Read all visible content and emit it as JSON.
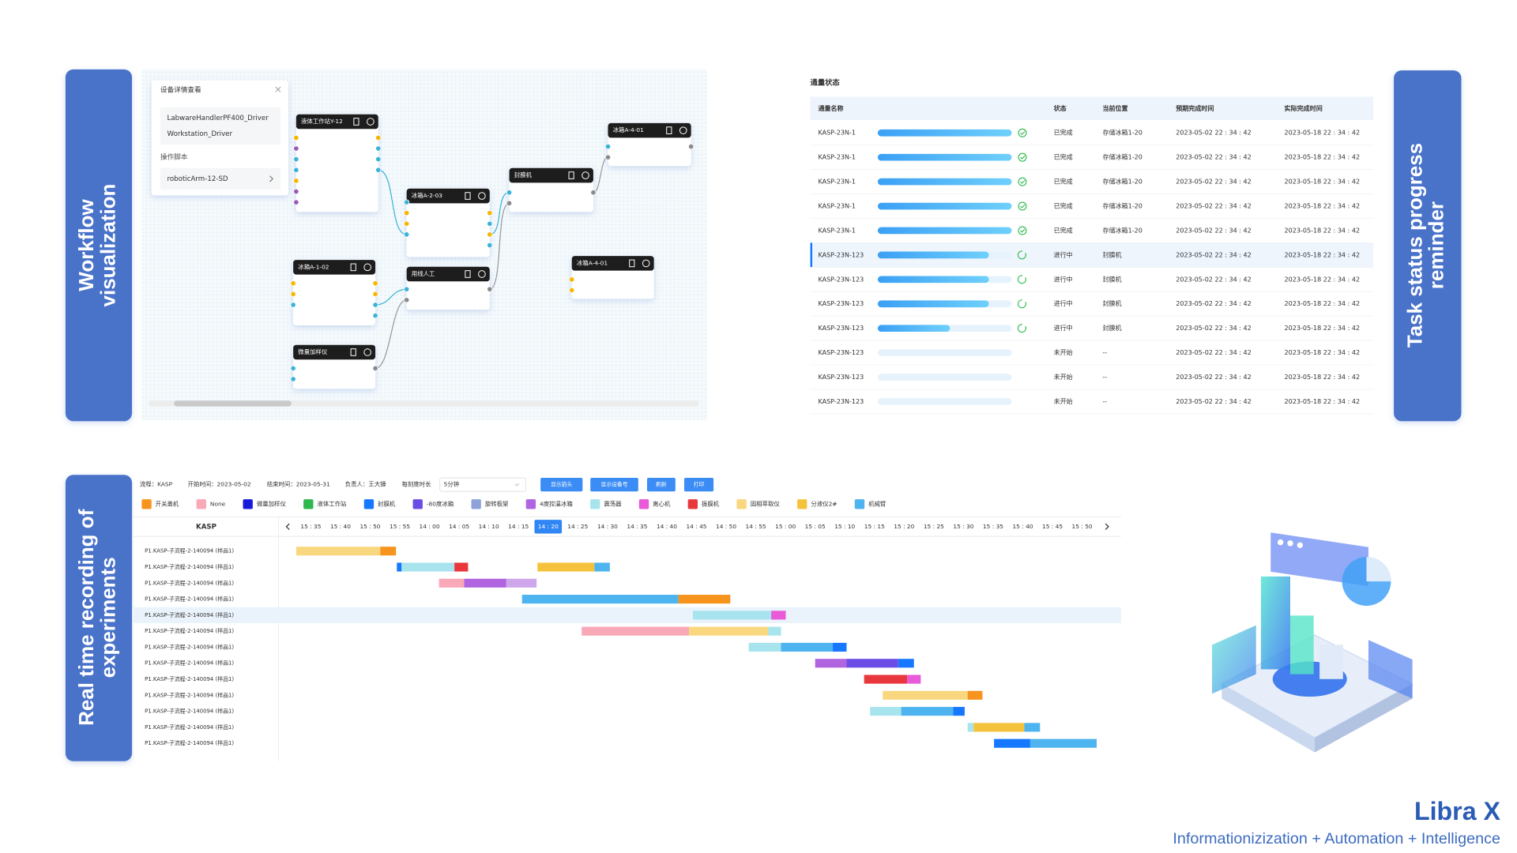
{
  "sections": {
    "workflow": [
      "Workflow",
      "visualization"
    ],
    "task": [
      "Task status progress",
      "reminder"
    ],
    "recording": [
      "Real time recording of",
      "experiments"
    ]
  },
  "workflow": {
    "detail": {
      "title": "设备详情查看",
      "items": [
        "LabwareHandlerPF400_Driver",
        "Workstation_Driver"
      ],
      "script_label": "操作脚本",
      "script": "roboticArm-12-SD"
    },
    "nodes": [
      "液体工作站Y-12",
      "冰箱A-2-03",
      "封膜机",
      "冰箱A-4-01",
      "冰箱A-1-02",
      "用线人工",
      "冰箱A-4-01",
      "微量加样仪"
    ]
  },
  "task_table": {
    "title": "通量状态",
    "headers": [
      "通量名称",
      "状态",
      "当前位置",
      "预期完成时间",
      "实际完成时间"
    ],
    "rows": [
      {
        "name": "KASP-23N-1",
        "progress": 100,
        "status": "已完成",
        "location": "存储冰箱1-20",
        "expected": "2023-05-02 22 : 34 : 42",
        "actual": "2023-05-18 22 : 34 : 42"
      },
      {
        "name": "KASP-23N-1",
        "progress": 100,
        "status": "已完成",
        "location": "存储冰箱1-20",
        "expected": "2023-05-02 22 : 34 : 42",
        "actual": "2023-05-18 22 : 34 : 42"
      },
      {
        "name": "KASP-23N-1",
        "progress": 100,
        "status": "已完成",
        "location": "存储冰箱1-20",
        "expected": "2023-05-02 22 : 34 : 42",
        "actual": "2023-05-18 22 : 34 : 42"
      },
      {
        "name": "KASP-23N-1",
        "progress": 100,
        "status": "已完成",
        "location": "存储冰箱1-20",
        "expected": "2023-05-02 22 : 34 : 42",
        "actual": "2023-05-18 22 : 34 : 42"
      },
      {
        "name": "KASP-23N-1",
        "progress": 100,
        "status": "已完成",
        "location": "存储冰箱1-20",
        "expected": "2023-05-02 22 : 34 : 42",
        "actual": "2023-05-18 22 : 34 : 42"
      },
      {
        "name": "KASP-23N-123",
        "progress": 83,
        "status": "进行中",
        "location": "封膜机",
        "expected": "2023-05-02 22 : 34 : 42",
        "actual": "2023-05-18 22 : 34 : 42"
      },
      {
        "name": "KASP-23N-123",
        "progress": 83,
        "status": "进行中",
        "location": "封膜机",
        "expected": "2023-05-02 22 : 34 : 42",
        "actual": "2023-05-18 22 : 34 : 42"
      },
      {
        "name": "KASP-23N-123",
        "progress": 83,
        "status": "进行中",
        "location": "封膜机",
        "expected": "2023-05-02 22 : 34 : 42",
        "actual": "2023-05-18 22 : 34 : 42"
      },
      {
        "name": "KASP-23N-123",
        "progress": 54,
        "status": "进行中",
        "location": "封膜机",
        "expected": "2023-05-02 22 : 34 : 42",
        "actual": "2023-05-18 22 : 34 : 42"
      },
      {
        "name": "KASP-23N-123",
        "progress": 0,
        "status": "未开始",
        "location": "--",
        "expected": "2023-05-02 22 : 34 : 42",
        "actual": "2023-05-18 22 : 34 : 42"
      },
      {
        "name": "KASP-23N-123",
        "progress": 0,
        "status": "未开始",
        "location": "--",
        "expected": "2023-05-02 22 : 34 : 42",
        "actual": "2023-05-18 22 : 34 : 42"
      },
      {
        "name": "KASP-23N-123",
        "progress": 0,
        "status": "未开始",
        "location": "--",
        "expected": "2023-05-02 22 : 34 : 42",
        "actual": "2023-05-18 22 : 34 : 42"
      }
    ],
    "progress_max": 100,
    "selected_row": 5
  },
  "gantt": {
    "toolbar": [
      "流程：KASP",
      "开始时间：2023-05-02",
      "结束时间：2023-05-31",
      "负责人：王大锤",
      "每刻度时长"
    ],
    "select": "5分钟",
    "buttons": [
      "显示箭头",
      "显示设备号",
      "刷新",
      "打印"
    ],
    "legend": [
      {
        "name": "开关盖机",
        "color": "#f7941d"
      },
      {
        "name": "None",
        "color": "#f9a8b8"
      },
      {
        "name": "微量加样仪",
        "color": "#1a1adb"
      },
      {
        "name": "液体工作站",
        "color": "#2db84d"
      },
      {
        "name": "封膜机",
        "color": "#1677ff"
      },
      {
        "name": "-80度冰箱",
        "color": "#6b4de6"
      },
      {
        "name": "旋转板架",
        "color": "#8da2d8"
      },
      {
        "name": "4度控温冰箱",
        "color": "#b064e0"
      },
      {
        "name": "震荡器",
        "color": "#a8e4ee"
      },
      {
        "name": "离心机",
        "color": "#e85ad8"
      },
      {
        "name": "振膜机",
        "color": "#e8383d"
      },
      {
        "name": "固相萃取仪",
        "color": "#f9d77e"
      },
      {
        "name": "分液仪2#",
        "color": "#f5c33b"
      },
      {
        "name": "机械臂",
        "color": "#4db4f0"
      }
    ],
    "column_title": "KASP",
    "time_ticks": [
      "15 : 35",
      "15 : 40",
      "15 : 50",
      "15 : 55",
      "14 : 00",
      "14 : 05",
      "14 : 10",
      "14 : 15",
      "14 : 20",
      "14 : 25",
      "14 : 30",
      "14 : 35",
      "14 : 40",
      "14 : 45",
      "14 : 50",
      "14 : 55",
      "15 : 00",
      "15 : 05",
      "15 : 10",
      "15 : 15",
      "15 : 20",
      "15 : 25",
      "15 : 30",
      "15 : 35",
      "15 : 40",
      "15 : 45",
      "15 : 50"
    ],
    "selected_tick": 8,
    "selected_row": 4,
    "rows": [
      {
        "label": "P1.KASP-子流程-2-140094 (样品1)",
        "segments": [
          {
            "start": -0.49,
            "end": 2.34,
            "color": "#f9d77e"
          },
          {
            "start": 2.34,
            "end": 2.87,
            "color": "#f7941d"
          }
        ]
      },
      {
        "label": "P1.KASP-子流程-2-140094 (样品1)",
        "segments": [
          {
            "start": 2.9,
            "end": 3.06,
            "color": "#1677ff"
          },
          {
            "start": 3.06,
            "end": 4.84,
            "color": "#a8e4ee"
          },
          {
            "start": 4.84,
            "end": 5.3,
            "color": "#e8383d"
          },
          {
            "start": 7.64,
            "end": 9.56,
            "color": "#f5c33b"
          },
          {
            "start": 9.56,
            "end": 10.08,
            "color": "#4db4f0"
          }
        ]
      },
      {
        "label": "P1.KASP-子流程-2-140094 (样品1)",
        "segments": [
          {
            "start": 4.32,
            "end": 5.17,
            "color": "#f9a8b8"
          },
          {
            "start": 5.17,
            "end": 6.59,
            "color": "#b064e0"
          },
          {
            "start": 6.59,
            "end": 7.61,
            "color": "#cfa6ec"
          }
        ]
      },
      {
        "label": "P1.KASP-子流程-2-140094 (样品1)",
        "segments": [
          {
            "start": 7.12,
            "end": 12.39,
            "color": "#4db4f0"
          },
          {
            "start": 12.39,
            "end": 14.14,
            "color": "#f7941d"
          }
        ]
      },
      {
        "label": "P1.KASP-子流程-2-140094 (样品1)",
        "segments": [
          {
            "start": 12.88,
            "end": 15.52,
            "color": "#a8e4ee"
          },
          {
            "start": 15.52,
            "end": 16.01,
            "color": "#e85ad8"
          }
        ]
      },
      {
        "label": "P1.KASP-子流程-2-140094 (样品1)",
        "segments": [
          {
            "start": 9.13,
            "end": 12.75,
            "color": "#f9a8b8"
          },
          {
            "start": 12.75,
            "end": 15.42,
            "color": "#f9d77e"
          },
          {
            "start": 15.42,
            "end": 15.85,
            "color": "#a8e4ee"
          }
        ]
      },
      {
        "label": "P1.KASP-子流程-2-140094 (样品1)",
        "segments": [
          {
            "start": 14.76,
            "end": 15.85,
            "color": "#a8e4ee"
          },
          {
            "start": 15.85,
            "end": 17.59,
            "color": "#4db4f0"
          },
          {
            "start": 17.59,
            "end": 18.06,
            "color": "#1677ff"
          }
        ]
      },
      {
        "label": "P1.KASP-子流程-2-140094 (样品1)",
        "segments": [
          {
            "start": 17.0,
            "end": 18.06,
            "color": "#b064e0"
          },
          {
            "start": 18.06,
            "end": 19.8,
            "color": "#6b4de6"
          },
          {
            "start": 19.8,
            "end": 20.33,
            "color": "#1677ff"
          }
        ]
      },
      {
        "label": "P1.KASP-子流程-2-140094 (样品1)",
        "segments": [
          {
            "start": 18.65,
            "end": 20.1,
            "color": "#e8383d"
          },
          {
            "start": 20.1,
            "end": 20.56,
            "color": "#e85ad8"
          }
        ]
      },
      {
        "label": "P1.KASP-子流程-2-140094 (样品1)",
        "segments": [
          {
            "start": 19.28,
            "end": 22.14,
            "color": "#f9d77e"
          },
          {
            "start": 22.14,
            "end": 22.64,
            "color": "#f7941d"
          }
        ]
      },
      {
        "label": "P1.KASP-子流程-2-140094 (样品1)",
        "segments": [
          {
            "start": 18.85,
            "end": 19.9,
            "color": "#a8e4ee"
          },
          {
            "start": 19.9,
            "end": 21.65,
            "color": "#4db4f0"
          },
          {
            "start": 21.65,
            "end": 22.04,
            "color": "#1677ff"
          }
        ]
      },
      {
        "label": "P1.KASP-子流程-2-140094 (样品1)",
        "segments": [
          {
            "start": 22.14,
            "end": 22.34,
            "color": "#a8e4ee"
          },
          {
            "start": 22.34,
            "end": 24.05,
            "color": "#f5c33b"
          },
          {
            "start": 24.05,
            "end": 24.58,
            "color": "#4db4f0"
          }
        ]
      },
      {
        "label": "P1.KASP-子流程-2-140094 (样品1)",
        "segments": [
          {
            "start": 23.03,
            "end": 24.25,
            "color": "#1677ff"
          },
          {
            "start": 24.25,
            "end": 26.49,
            "color": "#4db4f0"
          }
        ]
      }
    ]
  },
  "brand": {
    "name": "Libra X",
    "tagline": "Informationizization + Automation + Intelligence"
  }
}
